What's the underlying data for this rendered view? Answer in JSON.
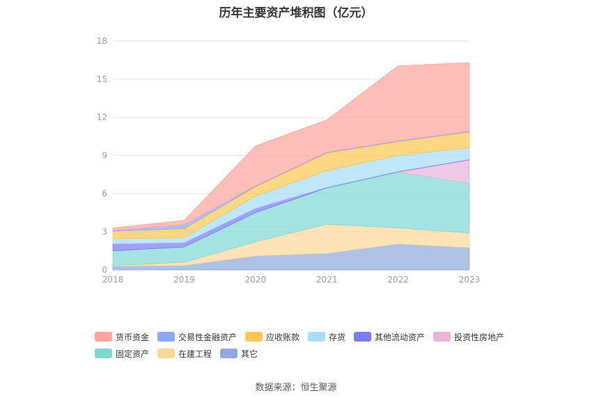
{
  "chart_data": {
    "type": "area",
    "stacked": true,
    "title": "历年主要资产堆积图（亿元）",
    "categories": [
      "2018",
      "2019",
      "2020",
      "2021",
      "2022",
      "2023"
    ],
    "ylim": [
      0,
      18
    ],
    "yticks": [
      0,
      3,
      6,
      9,
      12,
      15,
      18
    ],
    "grid": true,
    "legend_position": "bottom",
    "series": [
      {
        "name": "其它",
        "color": "#8faadc",
        "values": [
          0.3,
          0.35,
          1.1,
          1.3,
          2.05,
          1.75
        ]
      },
      {
        "name": "在建工程",
        "color": "#fcd898",
        "values": [
          0.05,
          0.25,
          1.1,
          2.3,
          1.25,
          1.15
        ]
      },
      {
        "name": "固定资产",
        "color": "#7fd8d6",
        "values": [
          1.15,
          1.2,
          2.3,
          2.85,
          4.4,
          3.9
        ]
      },
      {
        "name": "投资性房地产",
        "color": "#e8b4d8",
        "values": [
          0,
          0,
          0,
          0,
          0,
          1.85
        ]
      },
      {
        "name": "其他流动资产",
        "color": "#7b7cf2",
        "values": [
          0.55,
          0.35,
          0.35,
          0.05,
          0.05,
          0.05
        ]
      },
      {
        "name": "存货",
        "color": "#a8dcf8",
        "values": [
          0.4,
          0.4,
          0.95,
          1.3,
          1.25,
          0.9
        ]
      },
      {
        "name": "应收账款",
        "color": "#fcc851",
        "values": [
          0.6,
          0.7,
          0.75,
          1.4,
          1.1,
          1.25
        ]
      },
      {
        "name": "交易性金融资产",
        "color": "#8ca8f8",
        "values": [
          0.05,
          0.3,
          0.05,
          0.05,
          0.05,
          0.05
        ]
      },
      {
        "name": "货币资金",
        "color": "#fba59b",
        "values": [
          0.2,
          0.35,
          3.15,
          2.55,
          5.9,
          5.4
        ]
      }
    ],
    "legend_rows": [
      [
        "货币资金",
        "交易性金融资产",
        "应收账款",
        "存货",
        "其他流动资产",
        "投资性房地产"
      ],
      [
        "固定资产",
        "在建工程",
        "其它"
      ]
    ]
  },
  "source_text": "数据来源：恒生聚源"
}
